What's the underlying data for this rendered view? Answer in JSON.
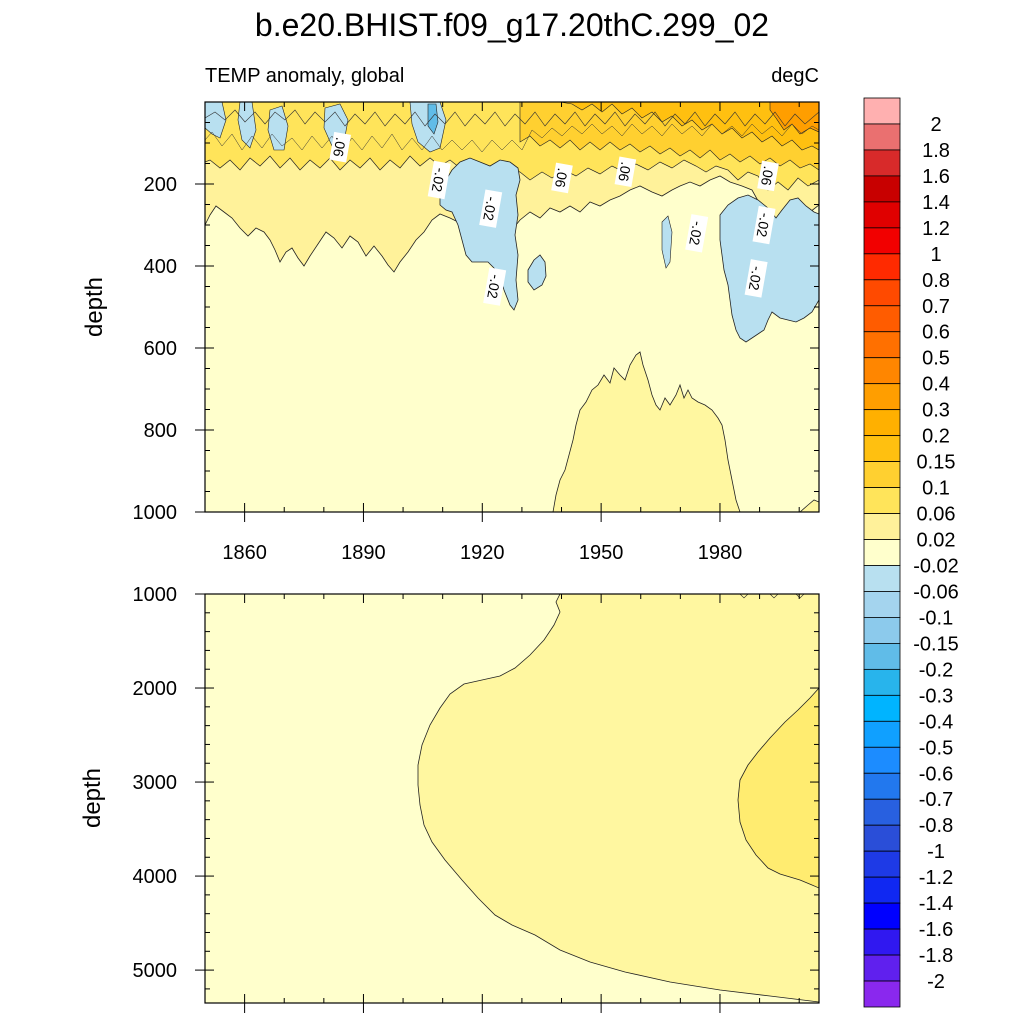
{
  "chart_data": {
    "type": "heatmap",
    "title": "b.e20.BHIST.f09_g17.20thC.299_02",
    "left_subtitle": "TEMP anomaly, global",
    "right_subtitle": "degC",
    "x_ticks": [
      1860,
      1890,
      1920,
      1950,
      1980
    ],
    "xlim": [
      1850,
      2005
    ],
    "panels": [
      {
        "name": "upper",
        "ylabel": "depth",
        "ylim": [
          0,
          1000
        ],
        "y_ticks": [
          200,
          400,
          600,
          800,
          1000
        ],
        "contour_labels": [
          {
            "text": ".06",
            "x": 1884,
            "y": 110
          },
          {
            "text": "-.02",
            "x": 1909,
            "y": 190
          },
          {
            "text": "-.02",
            "x": 1922,
            "y": 260
          },
          {
            "text": "-.02",
            "x": 1923,
            "y": 450
          },
          {
            "text": ".06",
            "x": 1940,
            "y": 185
          },
          {
            "text": ".06",
            "x": 1956,
            "y": 170
          },
          {
            "text": "-.02",
            "x": 1974,
            "y": 320
          },
          {
            "text": ".06",
            "x": 1992,
            "y": 180
          },
          {
            "text": "-.02",
            "x": 1991,
            "y": 300
          },
          {
            "text": "-.02",
            "x": 1989,
            "y": 430
          }
        ]
      },
      {
        "name": "lower",
        "ylabel": "depth",
        "ylim": [
          1000,
          5350
        ],
        "y_ticks": [
          1000,
          2000,
          3000,
          4000,
          5000
        ]
      }
    ],
    "colorbar": {
      "levels": [
        "2",
        "1.8",
        "1.6",
        "1.4",
        "1.2",
        "1",
        "0.8",
        "0.7",
        "0.6",
        "0.5",
        "0.4",
        "0.3",
        "0.2",
        "0.15",
        "0.1",
        "0.06",
        "0.02",
        "-0.02",
        "-0.06",
        "-0.1",
        "-0.15",
        "-0.2",
        "-0.3",
        "-0.4",
        "-0.5",
        "-0.6",
        "-0.7",
        "-0.8",
        "-1",
        "-1.2",
        "-1.4",
        "-1.6",
        "-1.8",
        "-2"
      ],
      "colors": [
        "#ffb0b0",
        "#ea7070",
        "#d82a2a",
        "#c80000",
        "#e00000",
        "#f20000",
        "#ff2a00",
        "#ff4a00",
        "#ff5c00",
        "#ff7000",
        "#ff8600",
        "#ff9e00",
        "#ffb000",
        "#ffc010",
        "#ffd030",
        "#ffe45a",
        "#fff19a",
        "#ffffcc",
        "#b8e0f0",
        "#a4d4ee",
        "#8ccaec",
        "#60bce8",
        "#28b4ec",
        "#00b4ff",
        "#10a0ff",
        "#1c8cff",
        "#2278ee",
        "#2860e0",
        "#2a4ed8",
        "#1e3ae6",
        "#1028f2",
        "#0000ff",
        "#3018f0",
        "#6020ee",
        "#8a28ee"
      ]
    }
  }
}
